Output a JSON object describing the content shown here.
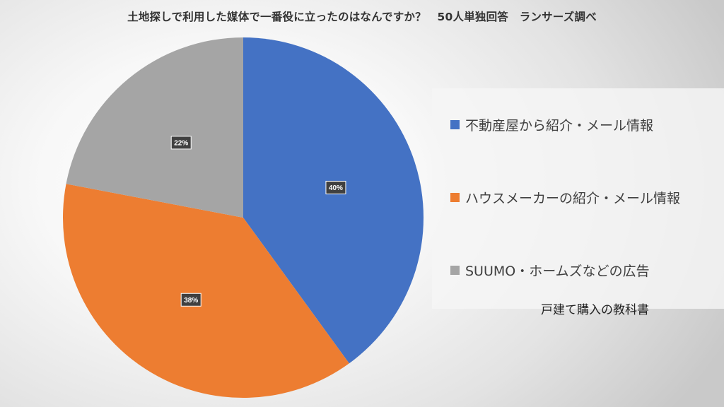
{
  "chart_data": {
    "type": "pie",
    "title": "土地探しで利用した媒体で一番役に立ったのはなんですか？　50人単独回答　ランサーズ調べ",
    "categories": [
      "不動産屋から紹介・メール情報",
      "ハウスメーカーの紹介・メール情報",
      "SUUMO・ホームズなどの広告"
    ],
    "values": [
      40,
      38,
      22
    ],
    "data_labels": [
      "40%",
      "38%",
      "22%"
    ],
    "colors": [
      "#4472C4",
      "#ED7D31",
      "#A5A5A5"
    ],
    "legend_position": "right"
  },
  "watermark": "戸建て購入の教科書"
}
